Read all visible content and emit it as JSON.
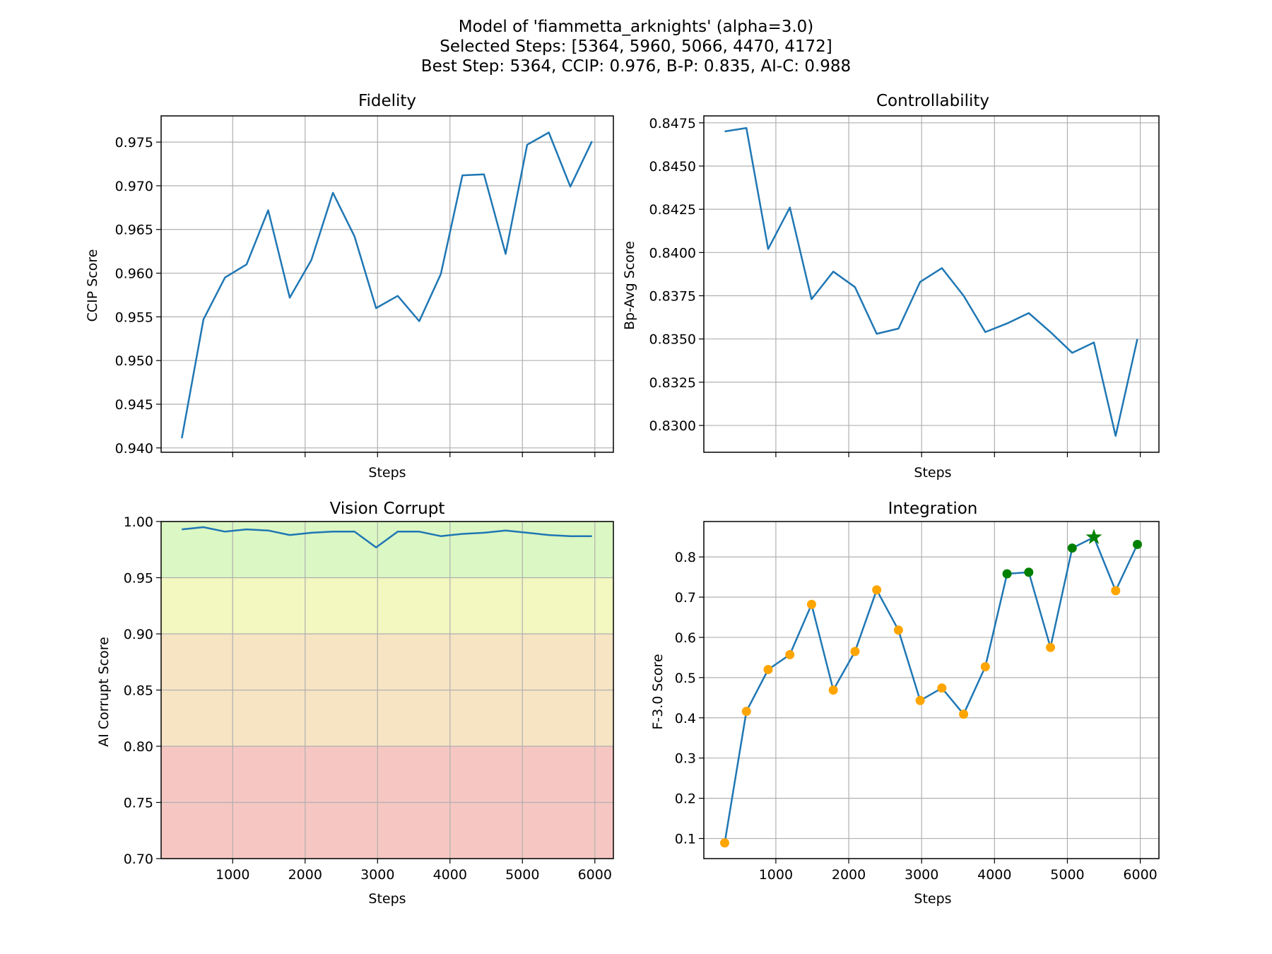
{
  "figure": {
    "title_lines": [
      "Model of 'fiammetta_arknights' (alpha=3.0)",
      "Selected Steps: [5364, 5960, 5066, 4470, 4172]",
      "Best Step: 5364, CCIP: 0.976, B-P: 0.835, AI-C: 0.988"
    ]
  },
  "chart_data": [
    {
      "id": "fidelity",
      "type": "line",
      "title": "Fidelity",
      "xlabel": "Steps",
      "ylabel": "CCIP Score",
      "grid": true,
      "color": "#1f77b4",
      "xlim": [
        12,
        6256
      ],
      "ylim": [
        0.9395,
        0.978
      ],
      "xticks": [
        1000,
        2000,
        3000,
        4000,
        5000,
        6000
      ],
      "yticks": [
        "0.940",
        "0.945",
        "0.950",
        "0.955",
        "0.960",
        "0.965",
        "0.970",
        "0.975"
      ],
      "show_xtick_labels": false,
      "x": [
        298,
        596,
        894,
        1192,
        1490,
        1788,
        2086,
        2384,
        2682,
        2980,
        3278,
        3576,
        3874,
        4172,
        4470,
        4768,
        5066,
        5364,
        5662,
        5960
      ],
      "y": [
        0.9411,
        0.9547,
        0.9595,
        0.961,
        0.9672,
        0.9572,
        0.9615,
        0.9692,
        0.9642,
        0.956,
        0.9574,
        0.9545,
        0.9599,
        0.9712,
        0.9713,
        0.9622,
        0.9747,
        0.9761,
        0.9699,
        0.9751
      ]
    },
    {
      "id": "controllability",
      "type": "line",
      "title": "Controllability",
      "xlabel": "Steps",
      "ylabel": "Bp-Avg Score",
      "grid": true,
      "color": "#1f77b4",
      "xlim": [
        12,
        6256
      ],
      "ylim": [
        0.82845,
        0.8479
      ],
      "xticks": [
        1000,
        2000,
        3000,
        4000,
        5000,
        6000
      ],
      "yticks": [
        "0.8300",
        "0.8325",
        "0.8350",
        "0.8375",
        "0.8400",
        "0.8425",
        "0.8450",
        "0.8475"
      ],
      "show_xtick_labels": false,
      "x": [
        298,
        596,
        894,
        1192,
        1490,
        1788,
        2086,
        2384,
        2682,
        2980,
        3278,
        3576,
        3874,
        4172,
        4470,
        4768,
        5066,
        5364,
        5662,
        5960
      ],
      "y": [
        0.847,
        0.8472,
        0.8402,
        0.8426,
        0.8373,
        0.8389,
        0.838,
        0.8353,
        0.8356,
        0.8383,
        0.8391,
        0.8375,
        0.8354,
        0.8359,
        0.8365,
        0.8354,
        0.8342,
        0.8348,
        0.8294,
        0.835
      ]
    },
    {
      "id": "vision-corrupt",
      "type": "line",
      "title": "Vision Corrupt",
      "xlabel": "Steps",
      "ylabel": "AI Corrupt Score",
      "grid": true,
      "color": "#1f77b4",
      "xlim": [
        12,
        6256
      ],
      "ylim": [
        0.7,
        1.0
      ],
      "xticks": [
        1000,
        2000,
        3000,
        4000,
        5000,
        6000
      ],
      "yticks": [
        "0.70",
        "0.75",
        "0.80",
        "0.85",
        "0.90",
        "0.95",
        "1.00"
      ],
      "show_xtick_labels": true,
      "bands": [
        {
          "from": 0.95,
          "to": 1.0,
          "color": "#dbf7c3"
        },
        {
          "from": 0.9,
          "to": 0.95,
          "color": "#f3f7c0"
        },
        {
          "from": 0.8,
          "to": 0.9,
          "color": "#f6e4c3"
        },
        {
          "from": 0.7,
          "to": 0.8,
          "color": "#f6c7c2"
        }
      ],
      "x": [
        298,
        596,
        894,
        1192,
        1490,
        1788,
        2086,
        2384,
        2682,
        2980,
        3278,
        3576,
        3874,
        4172,
        4470,
        4768,
        5066,
        5364,
        5662,
        5960
      ],
      "y": [
        0.993,
        0.995,
        0.991,
        0.993,
        0.992,
        0.988,
        0.99,
        0.991,
        0.991,
        0.977,
        0.991,
        0.991,
        0.987,
        0.989,
        0.99,
        0.992,
        0.99,
        0.988,
        0.987,
        0.987
      ]
    },
    {
      "id": "integration",
      "type": "line",
      "title": "Integration",
      "xlabel": "Steps",
      "ylabel": "F-3.0 Score",
      "grid": true,
      "color": "#1f77b4",
      "point_color": "#ffa500",
      "selected_color": "#008000",
      "xlim": [
        12,
        6256
      ],
      "ylim": [
        0.05,
        0.888
      ],
      "xticks": [
        1000,
        2000,
        3000,
        4000,
        5000,
        6000
      ],
      "yticks": [
        "0.1",
        "0.2",
        "0.3",
        "0.4",
        "0.5",
        "0.6",
        "0.7",
        "0.8"
      ],
      "show_xtick_labels": true,
      "selected_steps": [
        5364,
        5960,
        5066,
        4470,
        4172
      ],
      "best_step": 5364,
      "x": [
        298,
        596,
        894,
        1192,
        1490,
        1788,
        2086,
        2384,
        2682,
        2980,
        3278,
        3576,
        3874,
        4172,
        4470,
        4768,
        5066,
        5364,
        5662,
        5960
      ],
      "y": [
        0.089,
        0.416,
        0.52,
        0.557,
        0.682,
        0.469,
        0.565,
        0.718,
        0.618,
        0.443,
        0.474,
        0.409,
        0.527,
        0.758,
        0.762,
        0.575,
        0.822,
        0.849,
        0.716,
        0.831
      ]
    }
  ]
}
